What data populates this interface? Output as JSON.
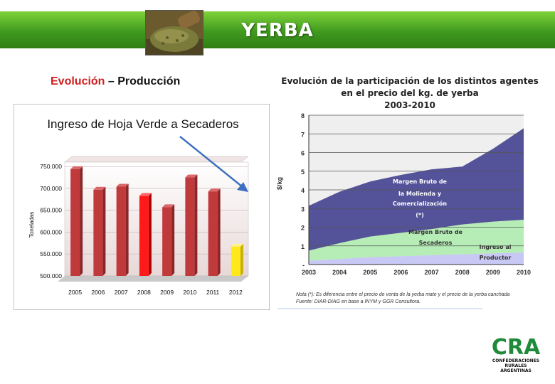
{
  "slide": {
    "title": "YERBA",
    "subtitle_part1": "Evolución",
    "subtitle_sep": " – ",
    "subtitle_part2": "Producción"
  },
  "colors": {
    "banner": "#4caf22",
    "bar": "#c0393b",
    "bar_highlight": "#ff1a1a",
    "bar_2012": "#ffe81a"
  },
  "chart_data": [
    {
      "type": "bar",
      "title": "Ingreso de Hoja Verde a Secaderos",
      "ylabel": "Toneladas",
      "categories": [
        "2005",
        "2006",
        "2007",
        "2008",
        "2009",
        "2010",
        "2011",
        "2012"
      ],
      "values": [
        744000,
        697000,
        704000,
        683000,
        657000,
        725000,
        693000,
        567000
      ],
      "highlight": {
        "2008": "red",
        "2012": "yellow"
      },
      "yticks": [
        "500.000",
        "550.000",
        "600.000",
        "650.000",
        "700.000",
        "750.000"
      ],
      "ylim": [
        500000,
        760000
      ],
      "annotation": "downward trend arrow"
    },
    {
      "type": "area",
      "title_lines": [
        "Evolución de la participación de los distintos agentes",
        "en el precio del kg. de yerba",
        "2003-2010"
      ],
      "ylabel": "$/kg",
      "x": [
        2003,
        2004,
        2005,
        2006,
        2007,
        2008,
        2009,
        2010
      ],
      "xticks": [
        "2003",
        "2004",
        "2005",
        "2006",
        "2007",
        "2008",
        "2009",
        "2010"
      ],
      "yticks": [
        "-",
        "1",
        "2",
        "3",
        "4",
        "5",
        "6",
        "7",
        "8"
      ],
      "ylim": [
        0,
        8
      ],
      "grid": true,
      "series": [
        {
          "name": "Ingreso al Productor",
          "values": [
            0.2,
            0.3,
            0.4,
            0.45,
            0.5,
            0.55,
            0.6,
            0.65
          ],
          "color": "#c8c8f4"
        },
        {
          "name": "Margen Bruto de Secaderos",
          "values": [
            0.55,
            0.85,
            1.1,
            1.25,
            1.4,
            1.6,
            1.7,
            1.75
          ],
          "color": "#b6ecb6"
        },
        {
          "name": "Margen Bruto de la Molienda y Comercialización (*)",
          "values": [
            2.4,
            2.75,
            2.95,
            3.1,
            3.2,
            3.1,
            3.9,
            4.9
          ],
          "color": "#545399"
        }
      ],
      "label_lines": {
        "molienda": [
          "Margen Bruto de",
          "la Molienda y",
          "Comercialización",
          "(*)"
        ],
        "secaderos": [
          "Margen Bruto de",
          "Secaderos"
        ],
        "productor": [
          "Ingreso al",
          "Productor"
        ]
      },
      "note1": "Nota (*): Es diferencia entre el precio de venta de la yerba mate y el precio de la yerba canchada",
      "note2": "Fuente: DIAR-DIAG en base a INYM y GGR Consultora."
    }
  ],
  "logo": {
    "mark": "CRA",
    "line1": "CONFEDERACIONES",
    "line2": "RURALES",
    "line3": "ARGENTINAS"
  }
}
